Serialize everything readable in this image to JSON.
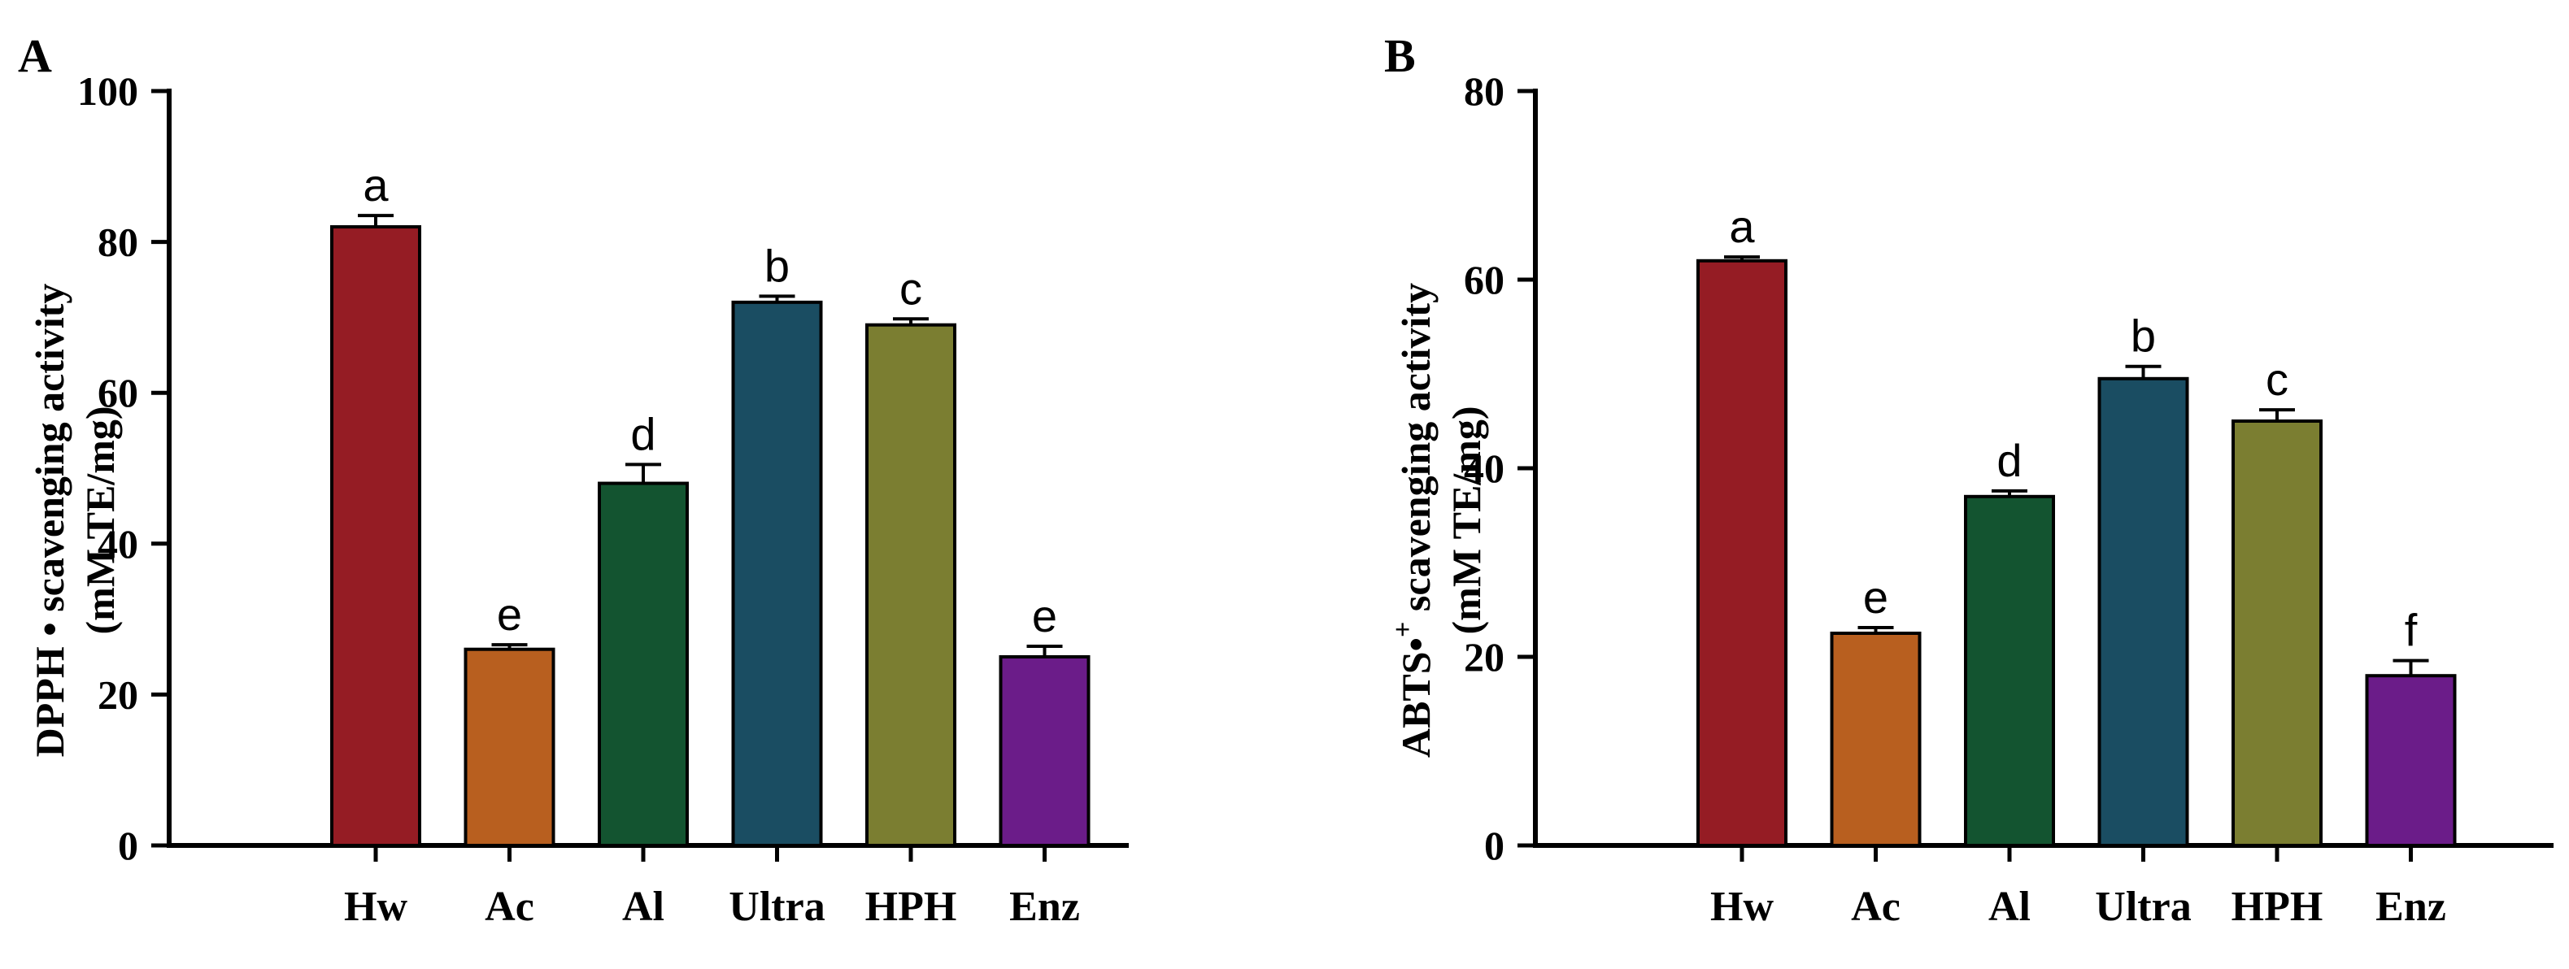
{
  "chart_data": [
    {
      "type": "bar",
      "panel": "A",
      "title": "",
      "xlabel": "",
      "ylabel_line1": "DPPH • scavenging activity",
      "ylabel_line2": "(mM TE/mg)",
      "ylim": [
        0,
        100
      ],
      "yticks": [
        0,
        20,
        40,
        60,
        80,
        100
      ],
      "categories": [
        "Hw",
        "Ac",
        "Al",
        "Ultra",
        "HPH",
        "Enz"
      ],
      "values": [
        82,
        26,
        48,
        72,
        69,
        25
      ],
      "errors": [
        1.5,
        0.6,
        2.5,
        0.8,
        0.8,
        1.4
      ],
      "significance": [
        "a",
        "e",
        "d",
        "b",
        "c",
        "e"
      ],
      "colors": [
        "#951c24",
        "#b85f1f",
        "#135430",
        "#1a4d62",
        "#7b7e31",
        "#6b1c89"
      ]
    },
    {
      "type": "bar",
      "panel": "B",
      "title": "",
      "xlabel": "",
      "ylabel_line1": "ABTS•",
      "ylabel_sup": "+",
      "ylabel_line1_rest": " scavenging activity",
      "ylabel_line2": "(mM TE/mg)",
      "ylim": [
        0,
        80
      ],
      "yticks": [
        0,
        20,
        40,
        60,
        80
      ],
      "categories": [
        "Hw",
        "Ac",
        "Al",
        "Ultra",
        "HPH",
        "Enz"
      ],
      "values": [
        62,
        22.5,
        37,
        49.5,
        45,
        18
      ],
      "errors": [
        0.4,
        0.6,
        0.6,
        1.3,
        1.2,
        1.6
      ],
      "significance": [
        "a",
        "e",
        "d",
        "b",
        "c",
        "f"
      ],
      "colors": [
        "#951c24",
        "#b85f1f",
        "#135430",
        "#1a4d62",
        "#7b7e31",
        "#6b1c89"
      ]
    }
  ]
}
